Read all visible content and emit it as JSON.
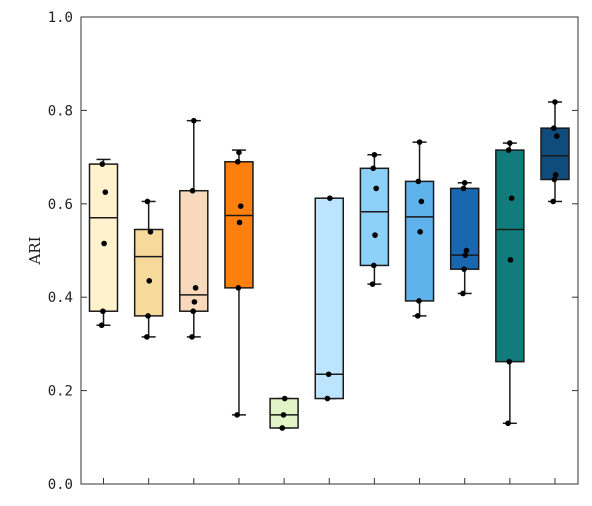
{
  "chart_data": {
    "type": "box",
    "title": "",
    "xlabel": "",
    "ylabel": "ARI",
    "ylim": [
      0,
      1
    ],
    "y_ticks": [
      "0.0",
      "0.2",
      "0.4",
      "0.6",
      "0.8",
      "1.0"
    ],
    "y_tick_values": [
      0,
      0.2,
      0.4,
      0.6,
      0.8,
      1.0
    ],
    "grid": false,
    "legend": "none",
    "boxes": [
      {
        "color": "#FFF2CC",
        "whisker_low": 0.34,
        "q1": 0.37,
        "median": 0.57,
        "q3": 0.685,
        "whisker_high": 0.695,
        "points": [
          0.34,
          0.37,
          0.515,
          0.625,
          0.685
        ]
      },
      {
        "color": "#F5DA9B",
        "whisker_low": 0.315,
        "q1": 0.36,
        "median": 0.487,
        "q3": 0.545,
        "whisker_high": 0.605,
        "points": [
          0.315,
          0.36,
          0.435,
          0.54,
          0.605
        ]
      },
      {
        "color": "#F8D9BC",
        "whisker_low": 0.315,
        "q1": 0.37,
        "median": 0.405,
        "q3": 0.628,
        "whisker_high": 0.778,
        "points": [
          0.315,
          0.37,
          0.39,
          0.42,
          0.628,
          0.778
        ]
      },
      {
        "color": "#FF7F0E",
        "whisker_low": 0.148,
        "q1": 0.42,
        "median": 0.575,
        "q3": 0.69,
        "whisker_high": 0.715,
        "points": [
          0.148,
          0.42,
          0.56,
          0.595,
          0.69,
          0.71
        ]
      },
      {
        "color": "#E2F4C7",
        "whisker_low": 0.12,
        "q1": 0.12,
        "median": 0.148,
        "q3": 0.183,
        "whisker_high": 0.183,
        "points": [
          0.12,
          0.148,
          0.183
        ]
      },
      {
        "color": "#BDE4FF",
        "whisker_low": 0.183,
        "q1": 0.183,
        "median": 0.235,
        "q3": 0.612,
        "whisker_high": 0.612,
        "points": [
          0.183,
          0.235,
          0.612
        ]
      },
      {
        "color": "#8DD0F8",
        "whisker_low": 0.428,
        "q1": 0.468,
        "median": 0.583,
        "q3": 0.676,
        "whisker_high": 0.705,
        "points": [
          0.428,
          0.468,
          0.533,
          0.633,
          0.676,
          0.705
        ]
      },
      {
        "color": "#5EB3EC",
        "whisker_low": 0.36,
        "q1": 0.392,
        "median": 0.572,
        "q3": 0.648,
        "whisker_high": 0.732,
        "points": [
          0.36,
          0.392,
          0.54,
          0.605,
          0.648,
          0.732
        ]
      },
      {
        "color": "#1768B0",
        "whisker_low": 0.408,
        "q1": 0.46,
        "median": 0.49,
        "q3": 0.633,
        "whisker_high": 0.645,
        "points": [
          0.408,
          0.46,
          0.49,
          0.5,
          0.633,
          0.645
        ]
      },
      {
        "color": "#127C7C",
        "whisker_low": 0.13,
        "q1": 0.262,
        "median": 0.545,
        "q3": 0.715,
        "whisker_high": 0.73,
        "points": [
          0.13,
          0.262,
          0.48,
          0.612,
          0.715,
          0.73
        ]
      },
      {
        "color": "#0F4C7C",
        "whisker_low": 0.605,
        "q1": 0.652,
        "median": 0.703,
        "q3": 0.762,
        "whisker_high": 0.818,
        "points": [
          0.605,
          0.652,
          0.662,
          0.745,
          0.762,
          0.818
        ]
      }
    ]
  }
}
